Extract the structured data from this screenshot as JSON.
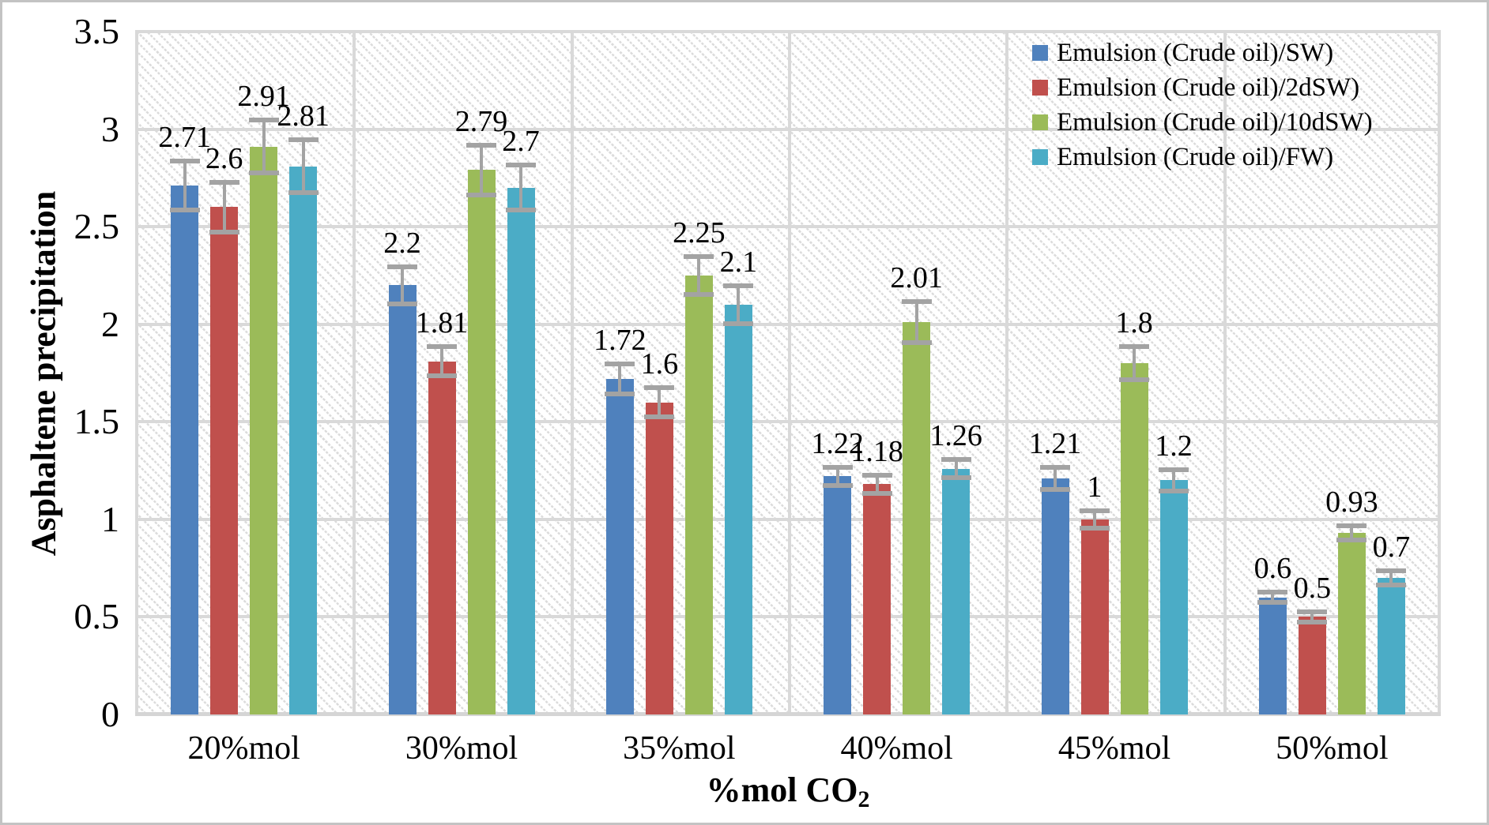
{
  "chart_data": {
    "type": "bar",
    "title": "",
    "ylabel": "Asphaltene precipitation",
    "xlabel_main": "%mol CO",
    "xlabel_sub": "2",
    "categories": [
      "20%mol",
      "30%mol",
      "35%mol",
      "40%mol",
      "45%mol",
      "50%mol"
    ],
    "yticks": [
      "0",
      "0.5",
      "1",
      "1.5",
      "2",
      "2.5",
      "3",
      "3.5"
    ],
    "ylim": [
      0,
      3.5
    ],
    "grid": "horizontal gridlines every 0.5 plus vertical category-boundary gridlines",
    "plot_background": "white with light gray diagonal hatch pattern",
    "legend_position": "top-right inside plot",
    "series": [
      {
        "name": "Emulsion (Crude oil)/SW)",
        "color": "#4F81BD",
        "values": [
          2.71,
          2.2,
          1.72,
          1.22,
          1.21,
          0.6
        ],
        "labels": [
          "2.71",
          "2.2",
          "1.72",
          "1.22",
          "1.21",
          "0.6"
        ],
        "errors": [
          0.13,
          0.1,
          0.08,
          0.05,
          0.06,
          0.03
        ]
      },
      {
        "name": "Emulsion (Crude oil)/2dSW)",
        "color": "#C0504D",
        "values": [
          2.6,
          1.81,
          1.6,
          1.18,
          1.0,
          0.5
        ],
        "labels": [
          "2.6",
          "1.81",
          "1.6",
          "1.18",
          "1",
          "0.5"
        ],
        "errors": [
          0.13,
          0.08,
          0.08,
          0.05,
          0.05,
          0.03
        ]
      },
      {
        "name": "Emulsion (Crude oil)/10dSW)",
        "color": "#9BBB59",
        "values": [
          2.91,
          2.79,
          2.25,
          2.01,
          1.8,
          0.93
        ],
        "labels": [
          "2.91",
          "2.79",
          "2.25",
          "2.01",
          "1.8",
          "0.93"
        ],
        "errors": [
          0.14,
          0.13,
          0.1,
          0.11,
          0.09,
          0.04
        ]
      },
      {
        "name": "Emulsion (Crude oil)/FW)",
        "color": "#4BACC6",
        "values": [
          2.81,
          2.7,
          2.1,
          1.26,
          1.2,
          0.7
        ],
        "labels": [
          "2.81",
          "2.7",
          "2.1",
          "1.26",
          "1.2",
          "0.7"
        ],
        "errors": [
          0.14,
          0.12,
          0.1,
          0.05,
          0.06,
          0.04
        ]
      }
    ],
    "colors": {
      "gridline": "#d9d9d9",
      "error_bar": "#a3a3a3",
      "text": "#000000",
      "figure_border": "#c3c3c3"
    }
  }
}
